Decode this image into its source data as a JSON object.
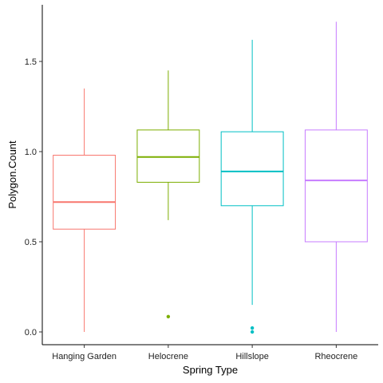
{
  "chart_data": {
    "type": "boxplot",
    "title": "",
    "xlabel": "Spring Type",
    "ylabel": "Polygon.Count",
    "ylim": [
      -0.05,
      1.78
    ],
    "yticks": [
      0.0,
      0.5,
      1.0,
      1.5
    ],
    "ytick_labels": [
      "0.0",
      "0.5",
      "1.0",
      "1.5"
    ],
    "grid": false,
    "legend": "none",
    "categories": [
      "Hanging Garden",
      "Helocrene",
      "Hillslope",
      "Rheocrene"
    ],
    "boxes": [
      {
        "category": "Hanging Garden",
        "color": "#F8766D",
        "whisker_low": 0.0,
        "q1": 0.57,
        "median": 0.72,
        "q3": 0.98,
        "whisker_high": 1.35,
        "outliers": []
      },
      {
        "category": "Helocrene",
        "color": "#7CAE00",
        "whisker_low": 0.62,
        "q1": 0.83,
        "median": 0.97,
        "q3": 1.12,
        "whisker_high": 1.45,
        "outliers": [
          0.085
        ]
      },
      {
        "category": "Hillslope",
        "color": "#00BFC4",
        "whisker_low": 0.15,
        "q1": 0.7,
        "median": 0.89,
        "q3": 1.11,
        "whisker_high": 1.62,
        "outliers": [
          0.0,
          0.022
        ]
      },
      {
        "category": "Rheocrene",
        "color": "#C77CFF",
        "whisker_low": 0.0,
        "q1": 0.5,
        "median": 0.84,
        "q3": 1.12,
        "whisker_high": 1.72,
        "outliers": []
      }
    ]
  }
}
